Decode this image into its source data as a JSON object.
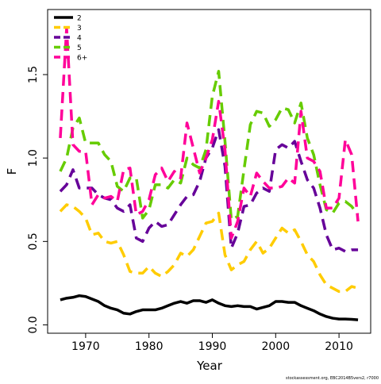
{
  "chart_data": {
    "type": "line",
    "xlabel": "Year",
    "ylabel": "F",
    "x": [
      1966,
      1967,
      1968,
      1969,
      1970,
      1971,
      1972,
      1973,
      1974,
      1975,
      1976,
      1977,
      1978,
      1979,
      1980,
      1981,
      1982,
      1983,
      1984,
      1985,
      1986,
      1987,
      1988,
      1989,
      1990,
      1991,
      1992,
      1993,
      1994,
      1995,
      1996,
      1997,
      1998,
      1999,
      2000,
      2001,
      2002,
      2003,
      2004,
      2005,
      2006,
      2007,
      2008,
      2009,
      2010,
      2011,
      2012,
      2013
    ],
    "series": [
      {
        "name": "2",
        "color": "#000000",
        "dashed": false,
        "values": [
          0.15,
          0.16,
          0.165,
          0.175,
          0.17,
          0.155,
          0.14,
          0.115,
          0.1,
          0.09,
          0.07,
          0.065,
          0.08,
          0.09,
          0.09,
          0.09,
          0.1,
          0.115,
          0.13,
          0.14,
          0.13,
          0.145,
          0.145,
          0.135,
          0.15,
          0.13,
          0.115,
          0.11,
          0.115,
          0.11,
          0.11,
          0.095,
          0.105,
          0.115,
          0.14,
          0.14,
          0.135,
          0.135,
          0.115,
          0.1,
          0.085,
          0.065,
          0.05,
          0.04,
          0.035,
          0.035,
          0.033,
          0.03
        ]
      },
      {
        "name": "3",
        "color": "#ffcc00",
        "dashed": true,
        "values": [
          0.68,
          0.72,
          0.71,
          0.68,
          0.64,
          0.54,
          0.55,
          0.5,
          0.49,
          0.5,
          0.42,
          0.32,
          0.31,
          0.31,
          0.35,
          0.31,
          0.29,
          0.32,
          0.36,
          0.43,
          0.41,
          0.45,
          0.53,
          0.61,
          0.62,
          0.67,
          0.42,
          0.33,
          0.36,
          0.38,
          0.45,
          0.5,
          0.43,
          0.46,
          0.52,
          0.58,
          0.55,
          0.57,
          0.5,
          0.42,
          0.38,
          0.3,
          0.24,
          0.22,
          0.2,
          0.2,
          0.23,
          0.22
        ]
      },
      {
        "name": "4",
        "color": "#660099",
        "dashed": true,
        "values": [
          0.8,
          0.84,
          0.93,
          0.82,
          0.82,
          0.82,
          0.78,
          0.76,
          0.75,
          0.7,
          0.68,
          0.72,
          0.52,
          0.5,
          0.58,
          0.62,
          0.59,
          0.6,
          0.66,
          0.72,
          0.77,
          0.78,
          0.86,
          1.0,
          1.06,
          1.17,
          0.95,
          0.46,
          0.55,
          0.71,
          0.72,
          0.79,
          0.82,
          0.8,
          1.05,
          1.08,
          1.06,
          1.1,
          0.98,
          0.87,
          0.82,
          0.7,
          0.54,
          0.45,
          0.46,
          0.44,
          0.45,
          0.45
        ]
      },
      {
        "name": "5",
        "color": "#66cc00",
        "dashed": true,
        "values": [
          0.92,
          1.0,
          1.18,
          1.24,
          1.09,
          1.09,
          1.09,
          1.02,
          0.98,
          0.83,
          0.8,
          0.88,
          0.88,
          0.64,
          0.69,
          0.84,
          0.84,
          0.82,
          0.87,
          0.85,
          1.0,
          0.96,
          0.94,
          1.05,
          1.37,
          1.52,
          1.1,
          0.63,
          0.65,
          0.93,
          1.2,
          1.28,
          1.27,
          1.19,
          1.23,
          1.3,
          1.29,
          1.21,
          1.33,
          1.12,
          1.02,
          0.84,
          0.69,
          0.67,
          0.73,
          0.74,
          0.71,
          0.66
        ]
      },
      {
        "name": "6+",
        "color": "#ff0099",
        "dashed": true,
        "values": [
          1.12,
          1.78,
          1.08,
          1.04,
          1.04,
          0.72,
          0.78,
          0.76,
          0.77,
          0.74,
          0.93,
          0.94,
          0.66,
          0.68,
          0.75,
          0.9,
          0.94,
          0.86,
          0.92,
          0.88,
          1.21,
          1.06,
          0.91,
          1.0,
          1.11,
          1.34,
          1.05,
          0.52,
          0.62,
          0.82,
          0.77,
          0.91,
          0.86,
          0.82,
          0.82,
          0.83,
          0.88,
          0.85,
          1.28,
          1.0,
          0.98,
          0.92,
          0.7,
          0.7,
          0.76,
          1.11,
          1.02,
          0.62
        ]
      }
    ],
    "xlim": [
      1964,
      2015
    ],
    "xticks": [
      1970,
      1980,
      1990,
      2000,
      2010
    ],
    "ylim": [
      -0.05,
      1.89
    ],
    "yticks": [
      {
        "value": 0,
        "label": "0.0"
      },
      0.5,
      {
        "value": 1,
        "label": "1.0"
      },
      1.5
    ],
    "legend": "top-left",
    "footnote": "stockassessment.org, EBC2014B5vers2, r7000"
  }
}
